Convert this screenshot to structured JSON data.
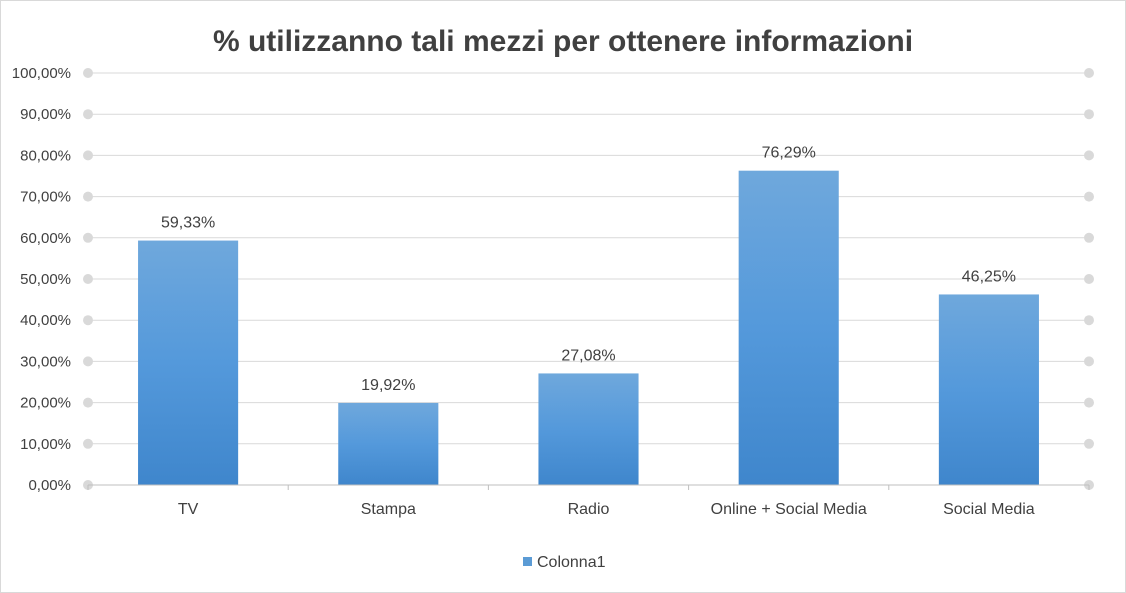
{
  "chart_data": {
    "type": "bar",
    "title": "% utilizzanno tali mezzi per ottenere informazioni",
    "categories": [
      "TV",
      "Stampa",
      "Radio",
      "Online + Social Media",
      "Social Media"
    ],
    "series": [
      {
        "name": "Colonna1",
        "values": [
          59.33,
          19.92,
          27.08,
          76.29,
          46.25
        ],
        "labels": [
          "59,33%",
          "19,92%",
          "27,08%",
          "76,29%",
          "46,25%"
        ],
        "color": "#5b9bd5"
      }
    ],
    "ylim": [
      0,
      100
    ],
    "yticks": [
      0,
      10,
      20,
      30,
      40,
      50,
      60,
      70,
      80,
      90,
      100
    ],
    "ytick_labels": [
      "0,00%",
      "10,00%",
      "20,00%",
      "30,00%",
      "40,00%",
      "50,00%",
      "60,00%",
      "70,00%",
      "80,00%",
      "90,00%",
      "100,00%"
    ],
    "xlabel": "",
    "ylabel": "",
    "grid": true,
    "legend_position": "bottom"
  }
}
